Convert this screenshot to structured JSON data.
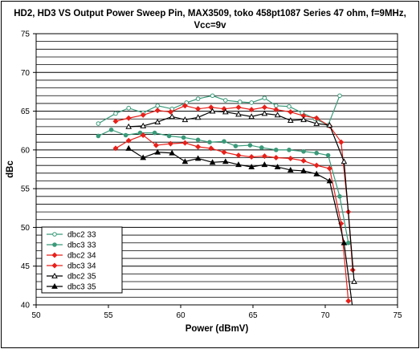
{
  "chart_data": {
    "type": "line",
    "title": "HD2, HD3 VS Output Power Sweep Pin, MAX3509, toko 458pt1087 Series 47 ohm, f=9MHz,",
    "subtitle": "Vcc=9v",
    "xlabel": "Power (dBmV)",
    "ylabel": "dBc",
    "xlim": [
      50,
      75
    ],
    "ylim": [
      40,
      75
    ],
    "xticks": [
      "50",
      "55",
      "60",
      "65",
      "70",
      "75"
    ],
    "yticks": [
      "40",
      "45",
      "50",
      "55",
      "60",
      "65",
      "70",
      "75"
    ],
    "grid": "horizontal",
    "legend_position": "bottom-left",
    "series": [
      {
        "name": "dbc2 33",
        "color": "#3a9a7a",
        "marker": "circle-open",
        "x": [
          54.3,
          55.5,
          56.4,
          57.4,
          58.4,
          59.4,
          60.4,
          61.2,
          62.2,
          63.1,
          64.1,
          64.9,
          65.8,
          66.6,
          67.5,
          68.4,
          69.3,
          70.2,
          71.0
        ],
        "y": [
          63.4,
          64.7,
          65.4,
          64.8,
          65.7,
          65.3,
          66.1,
          66.6,
          67.0,
          66.4,
          66.2,
          66.1,
          66.7,
          65.7,
          65.6,
          64.8,
          64.0,
          63.2,
          67.0
        ]
      },
      {
        "name": "dbc3 33",
        "color": "#3a9a7a",
        "marker": "circle",
        "x": [
          54.3,
          55.2,
          56.2,
          57.2,
          58.2,
          59.2,
          60.2,
          61.2,
          62.0,
          63.0,
          63.8,
          64.8,
          65.6,
          66.6,
          67.5,
          68.5,
          69.4,
          70.2,
          71.0,
          71.6
        ],
        "y": [
          61.8,
          62.6,
          61.9,
          62.2,
          62.2,
          61.8,
          61.6,
          61.3,
          61.0,
          61.1,
          60.5,
          60.6,
          60.3,
          60.0,
          60.0,
          59.8,
          59.6,
          59.3,
          54.0,
          48.0
        ]
      },
      {
        "name": "dbc2 34",
        "color": "#e8201a",
        "marker": "diamond",
        "x": [
          55.5,
          56.4,
          57.4,
          58.4,
          59.3,
          60.3,
          61.2,
          62.1,
          63.0,
          64.0,
          64.9,
          65.8,
          66.6,
          67.6,
          68.5,
          69.4,
          70.3,
          71.1,
          71.6,
          71.9
        ],
        "y": [
          63.7,
          64.1,
          64.5,
          65.1,
          64.9,
          65.7,
          65.3,
          65.5,
          65.3,
          65.5,
          65.2,
          65.5,
          65.2,
          64.9,
          64.4,
          64.1,
          63.1,
          61.0,
          52.0,
          44.5
        ]
      },
      {
        "name": "dbc3 34",
        "color": "#e8201a",
        "marker": "diamond",
        "x": [
          55.5,
          56.4,
          57.4,
          58.3,
          59.3,
          60.3,
          61.2,
          62.1,
          63.0,
          64.0,
          64.9,
          65.8,
          66.6,
          67.6,
          68.5,
          69.4,
          70.3,
          71.1,
          71.6
        ],
        "y": [
          60.2,
          61.2,
          61.9,
          60.6,
          60.8,
          60.9,
          60.4,
          60.2,
          59.7,
          59.3,
          59.1,
          59.2,
          59.0,
          58.9,
          58.6,
          58.0,
          57.6,
          50.5,
          40.5
        ]
      },
      {
        "name": "dbc2 35",
        "color": "#000000",
        "marker": "triangle-open",
        "x": [
          56.4,
          57.4,
          58.4,
          59.4,
          60.3,
          61.2,
          62.2,
          63.1,
          64.0,
          64.9,
          65.8,
          66.7,
          67.6,
          68.5,
          69.4,
          70.3,
          71.3,
          72.0
        ],
        "y": [
          63.0,
          63.1,
          63.6,
          64.3,
          63.9,
          64.2,
          65.0,
          64.9,
          64.6,
          64.3,
          64.7,
          64.5,
          63.8,
          63.9,
          63.4,
          63.2,
          58.5,
          43.0
        ]
      },
      {
        "name": "dbc3 35",
        "color": "#000000",
        "marker": "triangle",
        "x": [
          56.4,
          57.4,
          58.4,
          59.4,
          60.3,
          61.2,
          62.2,
          63.1,
          64.0,
          64.9,
          65.8,
          66.7,
          67.6,
          68.5,
          69.4,
          70.3,
          71.3,
          71.9
        ],
        "y": [
          60.2,
          59.0,
          59.7,
          59.6,
          58.5,
          58.9,
          58.4,
          58.5,
          58.1,
          57.8,
          58.1,
          57.8,
          57.4,
          57.3,
          56.9,
          56.0,
          48.0,
          39.5
        ]
      }
    ]
  }
}
